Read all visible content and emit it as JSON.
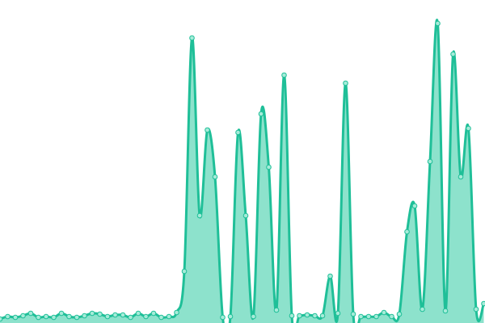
{
  "chart_data": {
    "type": "area",
    "categories": [
      null,
      null,
      null,
      null,
      null,
      null,
      null,
      null,
      null,
      null,
      null,
      null,
      null,
      null,
      null,
      null,
      null,
      null,
      null,
      null,
      null,
      null,
      null,
      null,
      null,
      null,
      null,
      null,
      null,
      null,
      null,
      null,
      null,
      null,
      null,
      null,
      null,
      null,
      null,
      null,
      null,
      null,
      null,
      null,
      null,
      null,
      null,
      null,
      null,
      null,
      null,
      null,
      null,
      null,
      null,
      null,
      null,
      null,
      null,
      null,
      null,
      null,
      null,
      null
    ],
    "values": [
      5,
      8,
      7,
      9,
      12,
      7,
      8,
      7,
      12,
      8,
      7,
      9,
      12,
      11,
      8,
      10,
      10,
      7,
      12,
      8,
      12,
      7,
      8,
      13,
      64,
      353,
      133,
      239,
      181,
      7,
      8,
      236,
      133,
      8,
      259,
      193,
      16,
      307,
      9,
      9,
      10,
      9,
      9,
      58,
      12,
      297,
      11,
      8,
      8,
      8,
      13,
      8,
      11,
      113,
      145,
      17,
      200,
      371,
      15,
      333,
      181,
      241,
      17,
      24
    ],
    "ylim": [
      0,
      400
    ],
    "color": "#1fbf98",
    "area_color": "#8de2cc",
    "marker_color": "#a6ecd9"
  }
}
